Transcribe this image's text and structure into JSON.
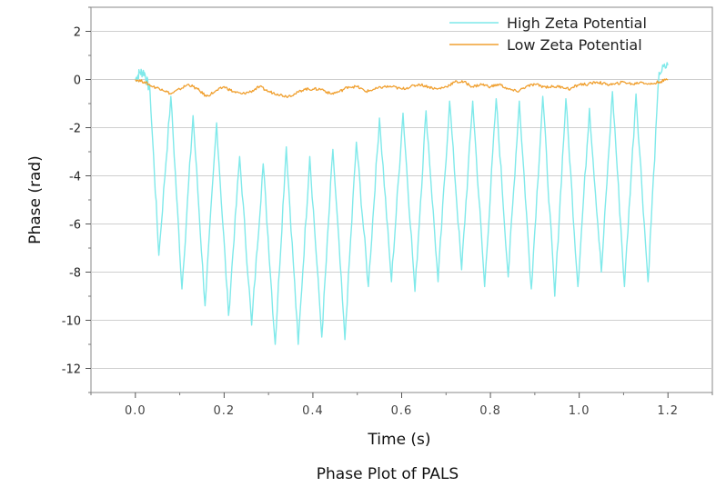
{
  "chart_data": {
    "type": "line",
    "title": "",
    "caption": "Phase Plot of PALS",
    "xlabel": "Time (s)",
    "ylabel": "Phase (rad)",
    "xlim": [
      -0.1,
      1.3
    ],
    "ylim": [
      -13,
      3
    ],
    "x_ticks": [
      "0.0",
      "0.2",
      "0.4",
      "0.6",
      "0.8",
      "1.0",
      "1.2"
    ],
    "x_tick_values": [
      0,
      0.2,
      0.4,
      0.6,
      0.8,
      1.0,
      1.2
    ],
    "y_ticks": [
      "2",
      "0",
      "-2",
      "-4",
      "-6",
      "-8",
      "-10",
      "-12"
    ],
    "y_tick_values": [
      2,
      0,
      -2,
      -4,
      -6,
      -8,
      -10,
      -12
    ],
    "grid": "horizontal",
    "legend_position": "top-right",
    "series": [
      {
        "name": "High Zeta Potential",
        "color": "#7fe9ea",
        "x": [
          0.0,
          0.01,
          0.02,
          0.033,
          0.053,
          0.08,
          0.105,
          0.13,
          0.157,
          0.183,
          0.21,
          0.235,
          0.262,
          0.288,
          0.315,
          0.34,
          0.367,
          0.393,
          0.42,
          0.445,
          0.472,
          0.498,
          0.525,
          0.55,
          0.577,
          0.603,
          0.63,
          0.655,
          0.682,
          0.708,
          0.735,
          0.76,
          0.787,
          0.813,
          0.84,
          0.865,
          0.892,
          0.918,
          0.945,
          0.97,
          0.997,
          1.023,
          1.05,
          1.075,
          1.102,
          1.128,
          1.155,
          1.18,
          1.2
        ],
        "y": [
          0.0,
          0.3,
          0.3,
          -0.5,
          -7.3,
          -0.7,
          -8.7,
          -1.5,
          -9.4,
          -1.8,
          -9.8,
          -3.2,
          -10.2,
          -3.5,
          -11.0,
          -2.8,
          -11.0,
          -3.2,
          -10.7,
          -2.9,
          -10.8,
          -2.6,
          -8.6,
          -1.6,
          -8.4,
          -1.4,
          -8.8,
          -1.3,
          -8.4,
          -0.9,
          -7.9,
          -0.9,
          -8.6,
          -0.8,
          -8.2,
          -0.9,
          -8.7,
          -0.7,
          -9.0,
          -0.8,
          -8.6,
          -1.2,
          -8.0,
          -0.5,
          -8.6,
          -0.6,
          -8.4,
          0.3,
          0.6
        ]
      },
      {
        "name": "Low Zeta Potential",
        "color": "#f0a030",
        "x": [
          0.0,
          0.02,
          0.04,
          0.06,
          0.08,
          0.1,
          0.12,
          0.14,
          0.16,
          0.18,
          0.2,
          0.22,
          0.24,
          0.26,
          0.28,
          0.3,
          0.32,
          0.34,
          0.36,
          0.38,
          0.4,
          0.42,
          0.44,
          0.46,
          0.48,
          0.5,
          0.52,
          0.54,
          0.56,
          0.58,
          0.6,
          0.62,
          0.64,
          0.66,
          0.68,
          0.7,
          0.72,
          0.74,
          0.76,
          0.78,
          0.8,
          0.82,
          0.84,
          0.86,
          0.88,
          0.9,
          0.92,
          0.94,
          0.96,
          0.98,
          1.0,
          1.02,
          1.04,
          1.06,
          1.08,
          1.1,
          1.12,
          1.14,
          1.16,
          1.18,
          1.2
        ],
        "y": [
          0.0,
          -0.1,
          -0.3,
          -0.4,
          -0.6,
          -0.4,
          -0.2,
          -0.4,
          -0.7,
          -0.5,
          -0.3,
          -0.5,
          -0.6,
          -0.5,
          -0.3,
          -0.5,
          -0.6,
          -0.7,
          -0.6,
          -0.4,
          -0.4,
          -0.4,
          -0.6,
          -0.5,
          -0.3,
          -0.3,
          -0.5,
          -0.4,
          -0.3,
          -0.3,
          -0.4,
          -0.3,
          -0.2,
          -0.3,
          -0.4,
          -0.3,
          -0.1,
          -0.1,
          -0.3,
          -0.2,
          -0.3,
          -0.2,
          -0.4,
          -0.5,
          -0.3,
          -0.2,
          -0.3,
          -0.3,
          -0.3,
          -0.4,
          -0.2,
          -0.2,
          -0.1,
          -0.2,
          -0.2,
          -0.1,
          -0.2,
          -0.1,
          -0.2,
          -0.1,
          0.0
        ]
      }
    ]
  }
}
